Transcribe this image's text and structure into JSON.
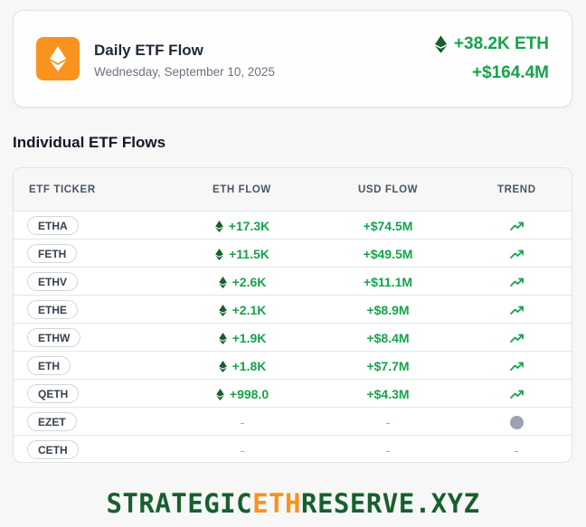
{
  "summary": {
    "title": "Daily ETF Flow",
    "date": "Wednesday, September 10, 2025",
    "total_eth": "+38.2K ETH",
    "total_usd": "+$164.4M",
    "positive_color": "#16a34a",
    "logo_color": "#f7931e",
    "logo_icon": "ethereum-icon"
  },
  "section_heading": "Individual ETF Flows",
  "table": {
    "columns": [
      "ETF TICKER",
      "ETH FLOW",
      "USD FLOW",
      "TREND"
    ],
    "rows": [
      {
        "ticker": "ETHA",
        "eth": "+17.3K",
        "usd": "+$74.5M",
        "trend": "up"
      },
      {
        "ticker": "FETH",
        "eth": "+11.5K",
        "usd": "+$49.5M",
        "trend": "up"
      },
      {
        "ticker": "ETHV",
        "eth": "+2.6K",
        "usd": "+$11.1M",
        "trend": "up"
      },
      {
        "ticker": "ETHE",
        "eth": "+2.1K",
        "usd": "+$8.9M",
        "trend": "up"
      },
      {
        "ticker": "ETHW",
        "eth": "+1.9K",
        "usd": "+$8.4M",
        "trend": "up"
      },
      {
        "ticker": "ETH",
        "eth": "+1.8K",
        "usd": "+$7.7M",
        "trend": "up"
      },
      {
        "ticker": "QETH",
        "eth": "+998.0",
        "usd": "+$4.3M",
        "trend": "up"
      },
      {
        "ticker": "EZET",
        "eth": "-",
        "usd": "-",
        "trend": "neutral"
      },
      {
        "ticker": "CETH",
        "eth": "-",
        "usd": "-",
        "trend": "-"
      }
    ]
  },
  "footer": {
    "brand_part1": "STRATEGIC",
    "brand_part2": "ETH",
    "brand_part3": "RESERVE.XYZ",
    "brand_color": "#17602e",
    "accent_color": "#f7931e"
  }
}
